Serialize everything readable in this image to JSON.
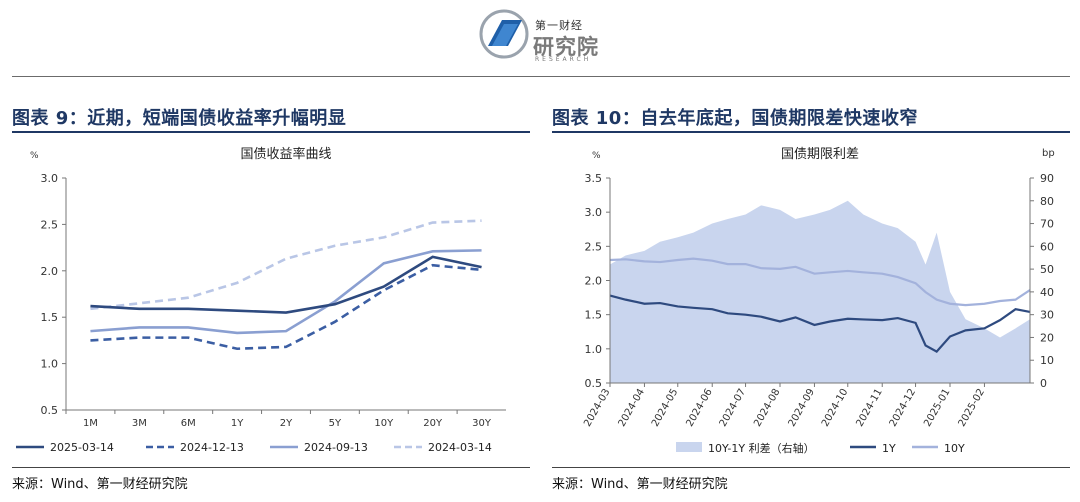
{
  "header": {
    "brand_small": "第一财经",
    "brand_big": "研究院",
    "brand_en": "RESEARCH"
  },
  "left": {
    "figure_title": "图表 9：近期，短端国债收益率升幅明显",
    "source": "来源：Wind、第一财经研究院",
    "chart_data": {
      "type": "line",
      "title": "国债收益率曲线",
      "unit": "%",
      "categories": [
        "1M",
        "3M",
        "6M",
        "1Y",
        "2Y",
        "5Y",
        "10Y",
        "20Y",
        "30Y"
      ],
      "ylim": [
        0.5,
        3.0
      ],
      "yticks": [
        "0.5",
        "1.0",
        "1.5",
        "2.0",
        "2.5",
        "3.0"
      ],
      "legend_position": "bottom",
      "series": [
        {
          "name": "2025-03-14",
          "color": "#2e4a7f",
          "style": "solid",
          "values": [
            1.62,
            1.59,
            1.59,
            1.57,
            1.55,
            1.64,
            1.83,
            2.15,
            2.04
          ]
        },
        {
          "name": "2024-12-13",
          "color": "#3b5ea3",
          "style": "dashed",
          "values": [
            1.25,
            1.28,
            1.28,
            1.16,
            1.18,
            1.45,
            1.79,
            2.06,
            2.01
          ]
        },
        {
          "name": "2024-09-13",
          "color": "#8a9fd1",
          "style": "solid",
          "values": [
            1.35,
            1.39,
            1.39,
            1.33,
            1.35,
            1.67,
            2.08,
            2.21,
            2.22
          ]
        },
        {
          "name": "2024-03-14",
          "color": "#b9c6e6",
          "style": "dashed",
          "values": [
            1.59,
            1.65,
            1.71,
            1.87,
            2.13,
            2.27,
            2.36,
            2.52,
            2.54
          ]
        }
      ]
    }
  },
  "right": {
    "figure_title": "图表 10：自去年底起，国债期限差快速收窄",
    "source": "来源：Wind、第一财经研究院",
    "chart_data": {
      "type": "line",
      "title": "国债期限利差",
      "unit_left": "%",
      "unit_right": "bp",
      "x_axis_type": "date",
      "x_ticks": [
        "2024-03",
        "2024-04",
        "2024-05",
        "2024-06",
        "2024-07",
        "2024-08",
        "2024-09",
        "2024-10",
        "2024-11",
        "2024-12",
        "2025-01",
        "2025-02"
      ],
      "ylim_left": [
        0.5,
        3.5
      ],
      "yticks_left": [
        "0.5",
        "1.0",
        "1.5",
        "2.0",
        "2.5",
        "3.0",
        "3.5"
      ],
      "ylim_right": [
        0,
        90
      ],
      "yticks_right": [
        "0",
        "10",
        "20",
        "30",
        "40",
        "50",
        "60",
        "70",
        "80",
        "90"
      ],
      "legend_position": "bottom",
      "x": [
        "2024-03-01",
        "2024-03-15",
        "2024-04-01",
        "2024-04-15",
        "2024-05-01",
        "2024-05-15",
        "2024-06-01",
        "2024-06-15",
        "2024-07-01",
        "2024-07-15",
        "2024-08-01",
        "2024-08-15",
        "2024-09-01",
        "2024-09-15",
        "2024-10-01",
        "2024-10-15",
        "2024-11-01",
        "2024-11-15",
        "2024-12-01",
        "2024-12-10",
        "2024-12-20",
        "2025-01-01",
        "2025-01-15",
        "2025-02-01",
        "2025-02-15",
        "2025-03-01",
        "2025-03-14"
      ],
      "series": [
        {
          "name": "10Y-1Y 利差（右轴）",
          "axis": "right",
          "type": "area",
          "color": "#c9d5ee",
          "values": [
            52,
            56,
            58,
            62,
            64,
            66,
            70,
            72,
            74,
            78,
            76,
            72,
            74,
            76,
            80,
            74,
            70,
            68,
            62,
            52,
            66,
            40,
            28,
            24,
            20,
            24,
            28
          ]
        },
        {
          "name": "1Y",
          "axis": "left",
          "type": "line",
          "color": "#2e4a7f",
          "values": [
            1.78,
            1.72,
            1.66,
            1.67,
            1.62,
            1.6,
            1.58,
            1.52,
            1.5,
            1.47,
            1.4,
            1.46,
            1.35,
            1.4,
            1.44,
            1.43,
            1.42,
            1.45,
            1.38,
            1.05,
            0.96,
            1.18,
            1.27,
            1.3,
            1.42,
            1.58,
            1.54
          ]
        },
        {
          "name": "10Y",
          "axis": "left",
          "type": "line",
          "color": "#a3b2dc",
          "values": [
            2.3,
            2.31,
            2.28,
            2.27,
            2.3,
            2.32,
            2.29,
            2.24,
            2.24,
            2.18,
            2.17,
            2.2,
            2.1,
            2.12,
            2.14,
            2.12,
            2.1,
            2.05,
            1.96,
            1.83,
            1.72,
            1.66,
            1.64,
            1.66,
            1.7,
            1.72,
            1.86
          ]
        }
      ]
    }
  }
}
